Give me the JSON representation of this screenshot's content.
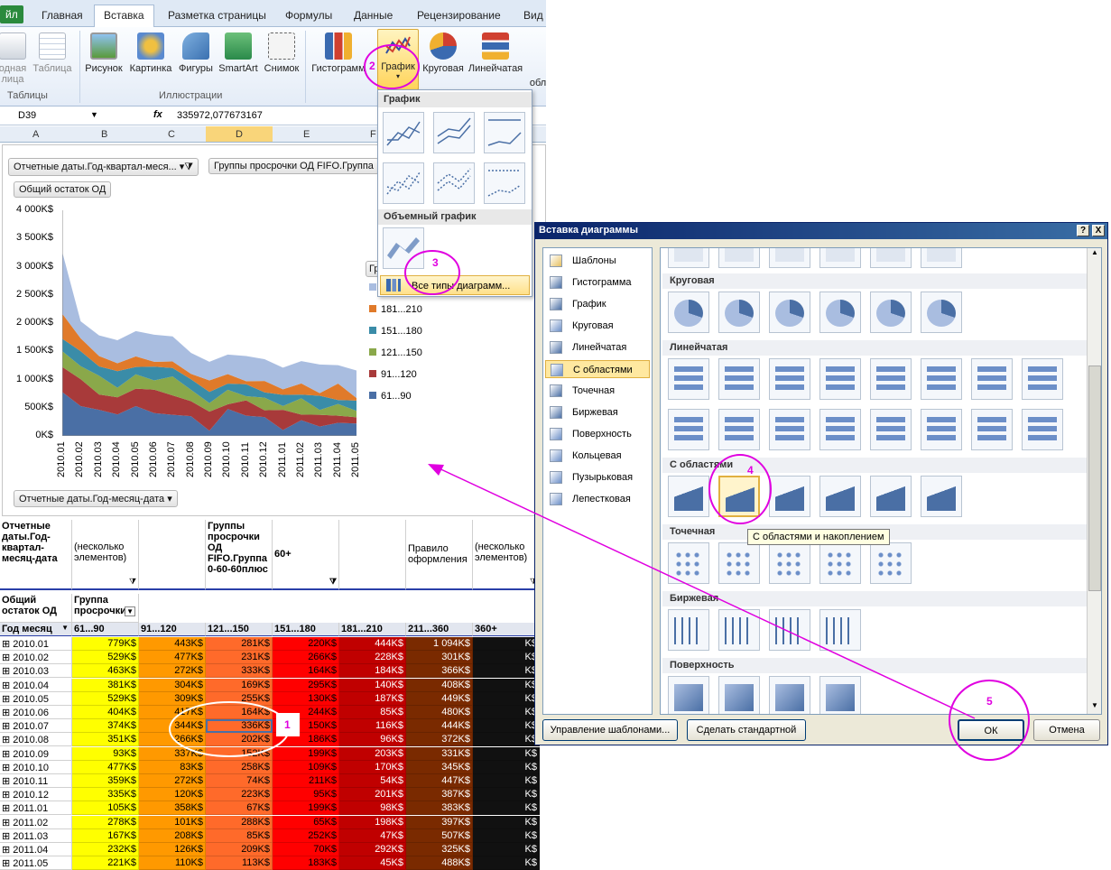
{
  "ribbon": {
    "tabs": [
      "йл",
      "Главная",
      "Вставка",
      "Разметка страницы",
      "Формулы",
      "Данные",
      "Рецензирование",
      "Вид"
    ],
    "buttons": {
      "pivot": [
        "одная",
        "лица"
      ],
      "table": "Таблица",
      "picture": "Рисунок",
      "clipart": "Картинка",
      "shapes": "Фигуры",
      "smartart": "SmartArt",
      "screenshot": "Снимок",
      "histogram": "Гистограмм",
      "line": "График",
      "pie": "Круговая",
      "bar": "Линейчатая",
      "area_cut": "обл"
    },
    "groups": {
      "tables": "Таблицы",
      "illustrations": "Иллюстрации"
    }
  },
  "formula_bar": {
    "cell_ref": "D39",
    "fx": "fx",
    "value": "335972,077673167"
  },
  "columns": [
    "A",
    "B",
    "C",
    "D",
    "E",
    "F"
  ],
  "chart": {
    "filter1": "Отчетные даты.Год-квартал-меся...",
    "filter2": "Группы просрочки ОД FIFO.Группа",
    "value_field": "Общий остаток ОД",
    "axis_field": "Отчетные даты.Год-месяц-дата",
    "legend_title_cut": "Гр"
  },
  "chart_data": {
    "type": "area",
    "stacked": true,
    "x": [
      "2010.01",
      "2010.02",
      "2010.03",
      "2010.04",
      "2010.05",
      "2010.06",
      "2010.07",
      "2010.08",
      "2010.09",
      "2010.10",
      "2010.11",
      "2010.12",
      "2011.01",
      "2011.02",
      "2011.03",
      "2011.04",
      "2011.05"
    ],
    "y_ticks": [
      "0K$",
      "500K$",
      "1 000K$",
      "1 500K$",
      "2 000K$",
      "2 500K$",
      "3 000K$",
      "3 500K$",
      "4 000K$"
    ],
    "ylim": [
      0,
      4000
    ],
    "series": [
      {
        "name": "61...90",
        "color": "#4a6fa5",
        "values": [
          779,
          529,
          463,
          381,
          529,
          404,
          374,
          351,
          93,
          477,
          359,
          335,
          105,
          278,
          167,
          232,
          221
        ]
      },
      {
        "name": "91...120",
        "color": "#a83a3a",
        "values": [
          443,
          477,
          272,
          304,
          309,
          417,
          344,
          266,
          337,
          83,
          272,
          120,
          358,
          101,
          208,
          126,
          110
        ]
      },
      {
        "name": "121...150",
        "color": "#8aa84a",
        "values": [
          281,
          231,
          333,
          169,
          255,
          164,
          336,
          202,
          152,
          258,
          74,
          223,
          67,
          288,
          85,
          209,
          113
        ]
      },
      {
        "name": "151...180",
        "color": "#3a8ca8",
        "values": [
          220,
          266,
          164,
          295,
          130,
          244,
          150,
          186,
          199,
          109,
          211,
          95,
          199,
          65,
          252,
          70,
          183
        ]
      },
      {
        "name": "181...210",
        "color": "#e07a2a",
        "values": [
          444,
          228,
          184,
          140,
          187,
          85,
          116,
          96,
          203,
          170,
          54,
          201,
          98,
          198,
          47,
          292,
          45
        ]
      },
      {
        "name": "211...360",
        "color": "#a9bde0",
        "values": [
          1094,
          301,
          366,
          408,
          449,
          480,
          444,
          372,
          331,
          345,
          447,
          387,
          383,
          397,
          507,
          325,
          488
        ]
      }
    ]
  },
  "chart_dropdown": {
    "section_2d": "График",
    "section_3d": "Объемный график",
    "all_types": "Все типы диаграмм..."
  },
  "pivot": {
    "report_filter_label": "Отчетные даты.Год-квартал-месяц-дата",
    "report_filter_value": "(несколько элементов)",
    "group_filter_label": "Группы просрочки ОД FIFO.Группа 0-60-60плюс",
    "group_filter_value": "60+",
    "rule_label": "Правило оформления",
    "rule_value": "(несколько элементов)",
    "values_label": "Общий остаток ОД",
    "col_label": "Группа просрочки",
    "row_label": "Год месяц",
    "col_headers": [
      "61...90",
      "91...120",
      "121...150",
      "151...180",
      "181...210",
      "211...360",
      "360+"
    ],
    "rows": [
      [
        "2010.01",
        "779K$",
        "443K$",
        "281K$",
        "220K$",
        "444K$",
        "1 094K$",
        "K$"
      ],
      [
        "2010.02",
        "529K$",
        "477K$",
        "231K$",
        "266K$",
        "228K$",
        "301K$",
        "K$"
      ],
      [
        "2010.03",
        "463K$",
        "272K$",
        "333K$",
        "164K$",
        "184K$",
        "366K$",
        "K$"
      ],
      [
        "2010.04",
        "381K$",
        "304K$",
        "169K$",
        "295K$",
        "140K$",
        "408K$",
        "K$"
      ],
      [
        "2010.05",
        "529K$",
        "309K$",
        "255K$",
        "130K$",
        "187K$",
        "449K$",
        "K$"
      ],
      [
        "2010.06",
        "404K$",
        "417K$",
        "164K$",
        "244K$",
        "85K$",
        "480K$",
        "K$"
      ],
      [
        "2010.07",
        "374K$",
        "344K$",
        "336K$",
        "150K$",
        "116K$",
        "444K$",
        "K$"
      ],
      [
        "2010.08",
        "351K$",
        "266K$",
        "202K$",
        "186K$",
        "96K$",
        "372K$",
        "K$"
      ],
      [
        "2010.09",
        "93K$",
        "337K$",
        "152K$",
        "199K$",
        "203K$",
        "331K$",
        "K$"
      ],
      [
        "2010.10",
        "477K$",
        "83K$",
        "258K$",
        "109K$",
        "170K$",
        "345K$",
        "K$"
      ],
      [
        "2010.11",
        "359K$",
        "272K$",
        "74K$",
        "211K$",
        "54K$",
        "447K$",
        "K$"
      ],
      [
        "2010.12",
        "335K$",
        "120K$",
        "223K$",
        "95K$",
        "201K$",
        "387K$",
        "K$"
      ],
      [
        "2011.01",
        "105K$",
        "358K$",
        "67K$",
        "199K$",
        "98K$",
        "383K$",
        "K$"
      ],
      [
        "2011.02",
        "278K$",
        "101K$",
        "288K$",
        "65K$",
        "198K$",
        "397K$",
        "K$"
      ],
      [
        "2011.03",
        "167K$",
        "208K$",
        "85K$",
        "252K$",
        "47K$",
        "507K$",
        "K$"
      ],
      [
        "2011.04",
        "232K$",
        "126K$",
        "209K$",
        "70K$",
        "292K$",
        "325K$",
        "K$"
      ],
      [
        "2011.05",
        "221K$",
        "110K$",
        "113K$",
        "183K$",
        "45K$",
        "488K$",
        "K$"
      ]
    ],
    "col_colors": [
      "#ffff00",
      "#ff9900",
      "#ff6a2a",
      "#ff0000",
      "#c00000",
      "#7a2a00",
      "#111111"
    ]
  },
  "dialog": {
    "title": "Вставка диаграммы",
    "help": "?",
    "close": "X",
    "types": [
      "Шаблоны",
      "Гистограмма",
      "График",
      "Круговая",
      "Линейчатая",
      "С областями",
      "Точечная",
      "Биржевая",
      "Поверхность",
      "Кольцевая",
      "Пузырьковая",
      "Лепестковая"
    ],
    "selected_type": "С областями",
    "sections": [
      "Круговая",
      "Линейчатая",
      "С областями",
      "Точечная",
      "Биржевая",
      "Поверхность"
    ],
    "tooltip": "С областями и накоплением",
    "manage_templates": "Управление шаблонами...",
    "set_default": "Сделать стандартной",
    "ok": "ОК",
    "cancel": "Отмена"
  },
  "annotations": [
    "1",
    "2",
    "3",
    "4",
    "5"
  ]
}
